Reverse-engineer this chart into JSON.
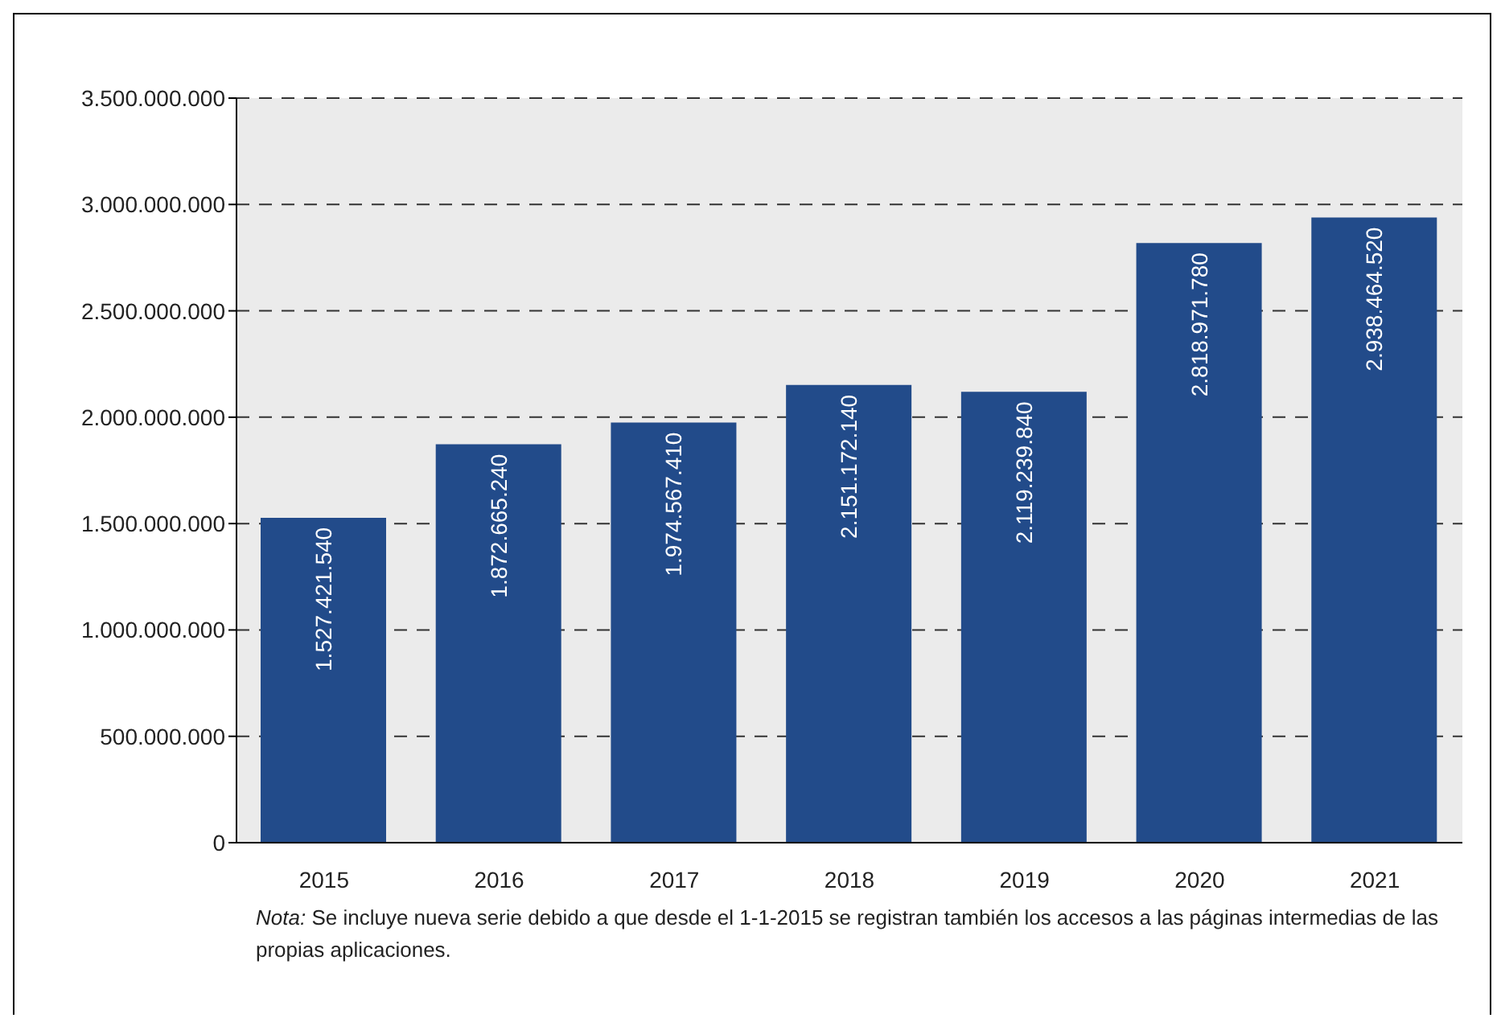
{
  "chart_data": {
    "type": "bar",
    "categories": [
      "2015",
      "2016",
      "2017",
      "2018",
      "2019",
      "2020",
      "2021"
    ],
    "values": [
      1527421540,
      1872665240,
      1974567410,
      2151172140,
      2119239840,
      2818971780,
      2938464520
    ],
    "value_labels": [
      "1.527.421.540",
      "1.872.665.240",
      "1.974.567.410",
      "2.151.172.140",
      "2.119.239.840",
      "2.818.971.780",
      "2.938.464.520"
    ],
    "color": "#224b8a",
    "ylim": [
      0,
      3500000000
    ],
    "yticks": [
      0,
      {
        "value": 500000000,
        "label": "500.000.000"
      },
      {
        "value": 1000000000,
        "label": "1.000.000.000"
      },
      {
        "value": 1500000000,
        "label": "1.500.000.000"
      },
      {
        "value": 2000000000,
        "label": "2.000.000.000"
      },
      {
        "value": 2500000000,
        "label": "2.500.000.000"
      },
      {
        "value": 3000000000,
        "label": "3.000.000.000"
      },
      {
        "value": 3500000000,
        "label": "3.500.000.000"
      }
    ],
    "grid": "y",
    "legend": false,
    "annotations": [
      "Nota: Se incluye nueva serie debido a que desde el 1-1-2015 se registran también los accesos a las páginas intermedias de las propias aplicaciones."
    ]
  }
}
